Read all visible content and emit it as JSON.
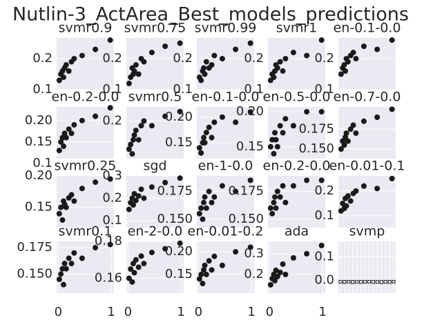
{
  "title": "Nutlin-3_ActArea_Best_models_predictions",
  "chart_data": [
    {
      "type": "scatter",
      "title": "svmr0.9",
      "color": "#1a1a1a",
      "grid": true,
      "xlim": [
        -0.03,
        1.05
      ],
      "ylim": [
        0.1,
        0.267
      ],
      "yticks": [
        0.1,
        0.2
      ],
      "x": [
        0.02,
        0.05,
        0.08,
        0.1,
        0.12,
        0.15,
        0.2,
        0.25,
        0.3,
        0.45,
        0.7,
        0.98
      ],
      "y": [
        0.13,
        0.15,
        0.16,
        0.14,
        0.17,
        0.18,
        0.16,
        0.19,
        0.2,
        0.21,
        0.23,
        0.26
      ]
    },
    {
      "type": "scatter",
      "title": "svmr0.75",
      "color": "#1a1a1a",
      "grid": true,
      "xlim": [
        -0.03,
        1.05
      ],
      "ylim": [
        0.1,
        0.267
      ],
      "yticks": [
        0.1,
        0.2
      ],
      "x": [
        0.02,
        0.05,
        0.08,
        0.1,
        0.12,
        0.15,
        0.2,
        0.25,
        0.3,
        0.45,
        0.7,
        0.98
      ],
      "y": [
        0.12,
        0.14,
        0.17,
        0.15,
        0.16,
        0.18,
        0.15,
        0.2,
        0.19,
        0.22,
        0.24,
        0.25
      ]
    },
    {
      "type": "scatter",
      "title": "svmr0.99",
      "color": "#1a1a1a",
      "grid": true,
      "xlim": [
        -0.03,
        1.05
      ],
      "ylim": [
        0.1,
        0.267
      ],
      "yticks": [
        0.1,
        0.2
      ],
      "x": [
        0.02,
        0.05,
        0.08,
        0.1,
        0.12,
        0.15,
        0.2,
        0.25,
        0.3,
        0.45,
        0.7,
        0.98
      ],
      "y": [
        0.14,
        0.13,
        0.16,
        0.17,
        0.15,
        0.19,
        0.17,
        0.18,
        0.21,
        0.2,
        0.23,
        0.25
      ]
    },
    {
      "type": "scatter",
      "title": "svmr1",
      "color": "#1a1a1a",
      "grid": true,
      "xlim": [
        -0.03,
        1.05
      ],
      "ylim": [
        0.1,
        0.267
      ],
      "yticks": [
        0.1,
        0.2
      ],
      "x": [
        0.02,
        0.05,
        0.08,
        0.1,
        0.12,
        0.15,
        0.2,
        0.25,
        0.3,
        0.45,
        0.7,
        0.98
      ],
      "y": [
        0.13,
        0.15,
        0.14,
        0.16,
        0.18,
        0.17,
        0.19,
        0.16,
        0.2,
        0.22,
        0.21,
        0.26
      ]
    },
    {
      "type": "scatter",
      "title": "en-0.1-0.0",
      "color": "#1a1a1a",
      "grid": true,
      "xlim": [
        -0.03,
        1.05
      ],
      "ylim": [
        0.1,
        0.267
      ],
      "yticks": [
        0.1,
        0.2
      ],
      "x": [
        0.02,
        0.05,
        0.08,
        0.1,
        0.12,
        0.15,
        0.2,
        0.25,
        0.3,
        0.45,
        0.7,
        0.98
      ],
      "y": [
        0.15,
        0.17,
        0.18,
        0.16,
        0.2,
        0.19,
        0.21,
        0.22,
        0.2,
        0.24,
        0.23,
        0.26
      ]
    },
    {
      "type": "scatter",
      "title": "en-0.2-0.0",
      "color": "#1a1a1a",
      "grid": true,
      "xlim": [
        -0.03,
        1.05
      ],
      "ylim": [
        0.111,
        0.232
      ],
      "yticks": [
        0.1,
        0.15,
        {
          "value": 0.2,
          "label": "0.20"
        }
      ],
      "x": [
        0.02,
        0.05,
        0.08,
        0.1,
        0.12,
        0.15,
        0.2,
        0.25,
        0.3,
        0.45,
        0.7,
        0.98
      ],
      "y": [
        0.13,
        0.15,
        0.16,
        0.14,
        0.17,
        0.16,
        0.18,
        0.17,
        0.19,
        0.2,
        0.21,
        0.23
      ]
    },
    {
      "type": "scatter",
      "title": "svmr0.5",
      "color": "#1a1a1a",
      "grid": true,
      "xlim": [
        -0.03,
        1.05
      ],
      "ylim": [
        0.12,
        0.23
      ],
      "yticks": [
        0.2
      ],
      "x": [
        0.02,
        0.05,
        0.08,
        0.1,
        0.12,
        0.15,
        0.2,
        0.25,
        0.3,
        0.45,
        0.7,
        0.98
      ],
      "y": [
        0.14,
        0.15,
        0.13,
        0.16,
        0.17,
        0.18,
        0.16,
        0.19,
        0.2,
        0.19,
        0.21,
        0.22
      ]
    },
    {
      "type": "scatter",
      "title": "en-0.1-0.0",
      "color": "#1a1a1a",
      "grid": true,
      "xlim": [
        -0.03,
        1.05
      ],
      "ylim": [
        0.119,
        0.22
      ],
      "yticks": [
        0.15,
        {
          "value": 0.2,
          "label": "0.20"
        }
      ],
      "x": [
        0.02,
        0.05,
        0.08,
        0.1,
        0.12,
        0.15,
        0.2,
        0.25,
        0.3,
        0.45,
        0.7,
        0.98
      ],
      "y": [
        0.14,
        0.13,
        0.15,
        0.16,
        0.15,
        0.17,
        0.18,
        0.16,
        0.19,
        0.2,
        0.19,
        0.21
      ]
    },
    {
      "type": "scatter",
      "title": "en-0.5-0.0",
      "color": "#1a1a1a",
      "grid": true,
      "xlim": [
        -0.03,
        1.05
      ],
      "ylim": [
        0.133,
        0.207
      ],
      "yticks": [
        0.15,
        {
          "value": 0.2,
          "label": "0.20"
        }
      ],
      "x": [
        0.02,
        0.05,
        0.08,
        0.1,
        0.12,
        0.15,
        0.2,
        0.25,
        0.3,
        0.45,
        0.7,
        0.98
      ],
      "y": [
        0.15,
        0.16,
        0.14,
        0.17,
        0.16,
        0.15,
        0.18,
        0.17,
        0.19,
        0.18,
        0.2,
        0.2
      ]
    },
    {
      "type": "scatter",
      "title": "en-0.7-0.0",
      "color": "#1a1a1a",
      "grid": true,
      "xlim": [
        -0.03,
        1.05
      ],
      "ylim": [
        0.138,
        0.203
      ],
      "yticks": [
        {
          "value": 0.15,
          "label": "0.150"
        },
        0.175
      ],
      "x": [
        0.02,
        0.05,
        0.08,
        0.1,
        0.12,
        0.15,
        0.2,
        0.25,
        0.3,
        0.45,
        0.7,
        0.98
      ],
      "y": [
        0.15,
        0.16,
        0.155,
        0.165,
        0.17,
        0.16,
        0.175,
        0.18,
        0.17,
        0.185,
        0.19,
        0.2
      ]
    },
    {
      "type": "scatter",
      "title": "svmr0.25",
      "color": "#1a1a1a",
      "grid": true,
      "xlim": [
        -0.03,
        1.05
      ],
      "ylim": [
        0.118,
        0.2
      ],
      "yticks": [
        0.15,
        {
          "value": 0.2,
          "label": "0.20"
        }
      ],
      "x": [
        0.02,
        0.05,
        0.08,
        0.1,
        0.12,
        0.15,
        0.2,
        0.25,
        0.3,
        0.45,
        0.7,
        0.98
      ],
      "y": [
        0.14,
        0.15,
        0.13,
        0.16,
        0.155,
        0.15,
        0.165,
        0.17,
        0.16,
        0.18,
        0.19,
        0.195
      ]
    },
    {
      "type": "scatter",
      "title": "sgd",
      "color": "#1a1a1a",
      "grid": true,
      "xlim": [
        -0.03,
        1.05
      ],
      "ylim": [
        0.069,
        0.3
      ],
      "yticks": [
        0.1,
        0.2,
        0.3
      ],
      "x": [
        0.02,
        0.05,
        0.08,
        0.1,
        0.12,
        0.15,
        0.2,
        0.25,
        0.3,
        0.45,
        0.7,
        0.98
      ],
      "y": [
        0.15,
        0.18,
        0.2,
        0.17,
        0.22,
        0.19,
        0.21,
        0.24,
        0.2,
        0.25,
        0.27,
        0.29
      ]
    },
    {
      "type": "scatter",
      "title": "en-1-0.0",
      "color": "#1a1a1a",
      "grid": true,
      "xlim": [
        -0.03,
        1.05
      ],
      "ylim": [
        0.1425,
        0.189
      ],
      "yticks": [
        {
          "value": 0.15,
          "label": "0.150"
        },
        0.175
      ],
      "x": [
        0.02,
        0.05,
        0.08,
        0.1,
        0.12,
        0.15,
        0.2,
        0.25,
        0.3,
        0.45,
        0.7,
        0.98
      ],
      "y": [
        0.155,
        0.16,
        0.15,
        0.165,
        0.17,
        0.16,
        0.175,
        0.165,
        0.17,
        0.18,
        0.175,
        0.185
      ]
    },
    {
      "type": "scatter",
      "title": "en-0.2-0.0",
      "color": "#1a1a1a",
      "grid": true,
      "xlim": [
        -0.03,
        1.05
      ],
      "ylim": [
        0.1425,
        0.189
      ],
      "yticks": [
        {
          "value": 0.15,
          "label": "0.150"
        },
        0.175
      ],
      "x": [
        0.02,
        0.05,
        0.08,
        0.1,
        0.12,
        0.15,
        0.2,
        0.25,
        0.3,
        0.45,
        0.7,
        0.98
      ],
      "y": [
        0.16,
        0.155,
        0.165,
        0.17,
        0.16,
        0.175,
        0.17,
        0.18,
        0.165,
        0.18,
        0.185,
        0.185
      ]
    },
    {
      "type": "scatter",
      "title": "en-0.01-0.1",
      "color": "#1a1a1a",
      "grid": true,
      "xlim": [
        -0.03,
        1.05
      ],
      "ylim": [
        0.053,
        0.261
      ],
      "yticks": [
        0.1,
        0.2
      ],
      "x": [
        0.02,
        0.05,
        0.08,
        0.1,
        0.12,
        0.15,
        0.2,
        0.25,
        0.3,
        0.45,
        0.7,
        0.98
      ],
      "y": [
        0.12,
        0.15,
        0.13,
        0.17,
        0.14,
        0.18,
        0.16,
        0.19,
        0.2,
        0.22,
        0.21,
        0.25
      ]
    },
    {
      "type": "scatter",
      "title": "svmr0.1",
      "color": "#1a1a1a",
      "grid": true,
      "xlim": [
        -0.03,
        1.05
      ],
      "ylim": [
        0.132,
        0.181
      ],
      "yticks": [
        {
          "value": 0.15,
          "label": "0.150"
        },
        0.175
      ],
      "xticks": [
        0,
        1
      ],
      "x": [
        0.02,
        0.05,
        0.08,
        0.1,
        0.12,
        0.15,
        0.2,
        0.25,
        0.3,
        0.45,
        0.7,
        0.98
      ],
      "y": [
        0.145,
        0.15,
        0.155,
        0.14,
        0.16,
        0.155,
        0.165,
        0.16,
        0.17,
        0.165,
        0.175,
        0.178
      ]
    },
    {
      "type": "scatter",
      "title": "en-2-0.0",
      "color": "#1a1a1a",
      "grid": true,
      "xlim": [
        -0.03,
        1.05
      ],
      "ylim": [
        0.152,
        0.18
      ],
      "yticks": [
        0.16,
        0.18
      ],
      "xticks": [
        0,
        1
      ],
      "x": [
        0.02,
        0.05,
        0.08,
        0.1,
        0.12,
        0.15,
        0.2,
        0.25,
        0.3,
        0.45,
        0.7,
        0.98
      ],
      "y": [
        0.16,
        0.165,
        0.158,
        0.168,
        0.163,
        0.17,
        0.166,
        0.172,
        0.168,
        0.174,
        0.176,
        0.179
      ]
    },
    {
      "type": "scatter",
      "title": "en-0.01-0.2",
      "color": "#1a1a1a",
      "grid": true,
      "xlim": [
        -0.03,
        1.05
      ],
      "ylim": [
        0.109,
        0.223
      ],
      "yticks": [
        0.15,
        {
          "value": 0.2,
          "label": "0.20"
        }
      ],
      "xticks": [
        0,
        1
      ],
      "x": [
        0.02,
        0.05,
        0.08,
        0.1,
        0.12,
        0.15,
        0.2,
        0.25,
        0.3,
        0.45,
        0.7,
        0.98
      ],
      "y": [
        0.14,
        0.15,
        0.13,
        0.16,
        0.17,
        0.15,
        0.18,
        0.16,
        0.19,
        0.17,
        0.2,
        0.21
      ]
    },
    {
      "type": "scatter",
      "title": "ada",
      "color": "#1a1a1a",
      "grid": true,
      "xlim": [
        -0.03,
        1.05
      ],
      "ylim": [
        0.11,
        0.36
      ],
      "yticks": [
        0.2,
        0.3
      ],
      "xticks": [
        0,
        1
      ],
      "x": [
        0.02,
        0.05,
        0.08,
        0.1,
        0.12,
        0.15,
        0.2,
        0.25,
        0.3,
        0.45,
        0.7,
        0.98
      ],
      "y": [
        0.15,
        0.18,
        0.2,
        0.17,
        0.22,
        0.19,
        0.21,
        0.25,
        0.2,
        0.28,
        0.3,
        0.34
      ]
    },
    {
      "type": "bar",
      "title": "svmp",
      "color": "#1a1a1a",
      "grid": true,
      "ylim": [
        -0.054,
        0.166
      ],
      "yticks": [
        {
          "value": 0.0,
          "label": "0.0"
        },
        0.1
      ],
      "values": [
        -0.012,
        -0.013,
        -0.011,
        -0.014,
        -0.012,
        -0.013,
        -0.012,
        -0.011,
        -0.013,
        -0.012,
        -0.014,
        -0.012,
        -0.013,
        -0.011
      ]
    }
  ]
}
